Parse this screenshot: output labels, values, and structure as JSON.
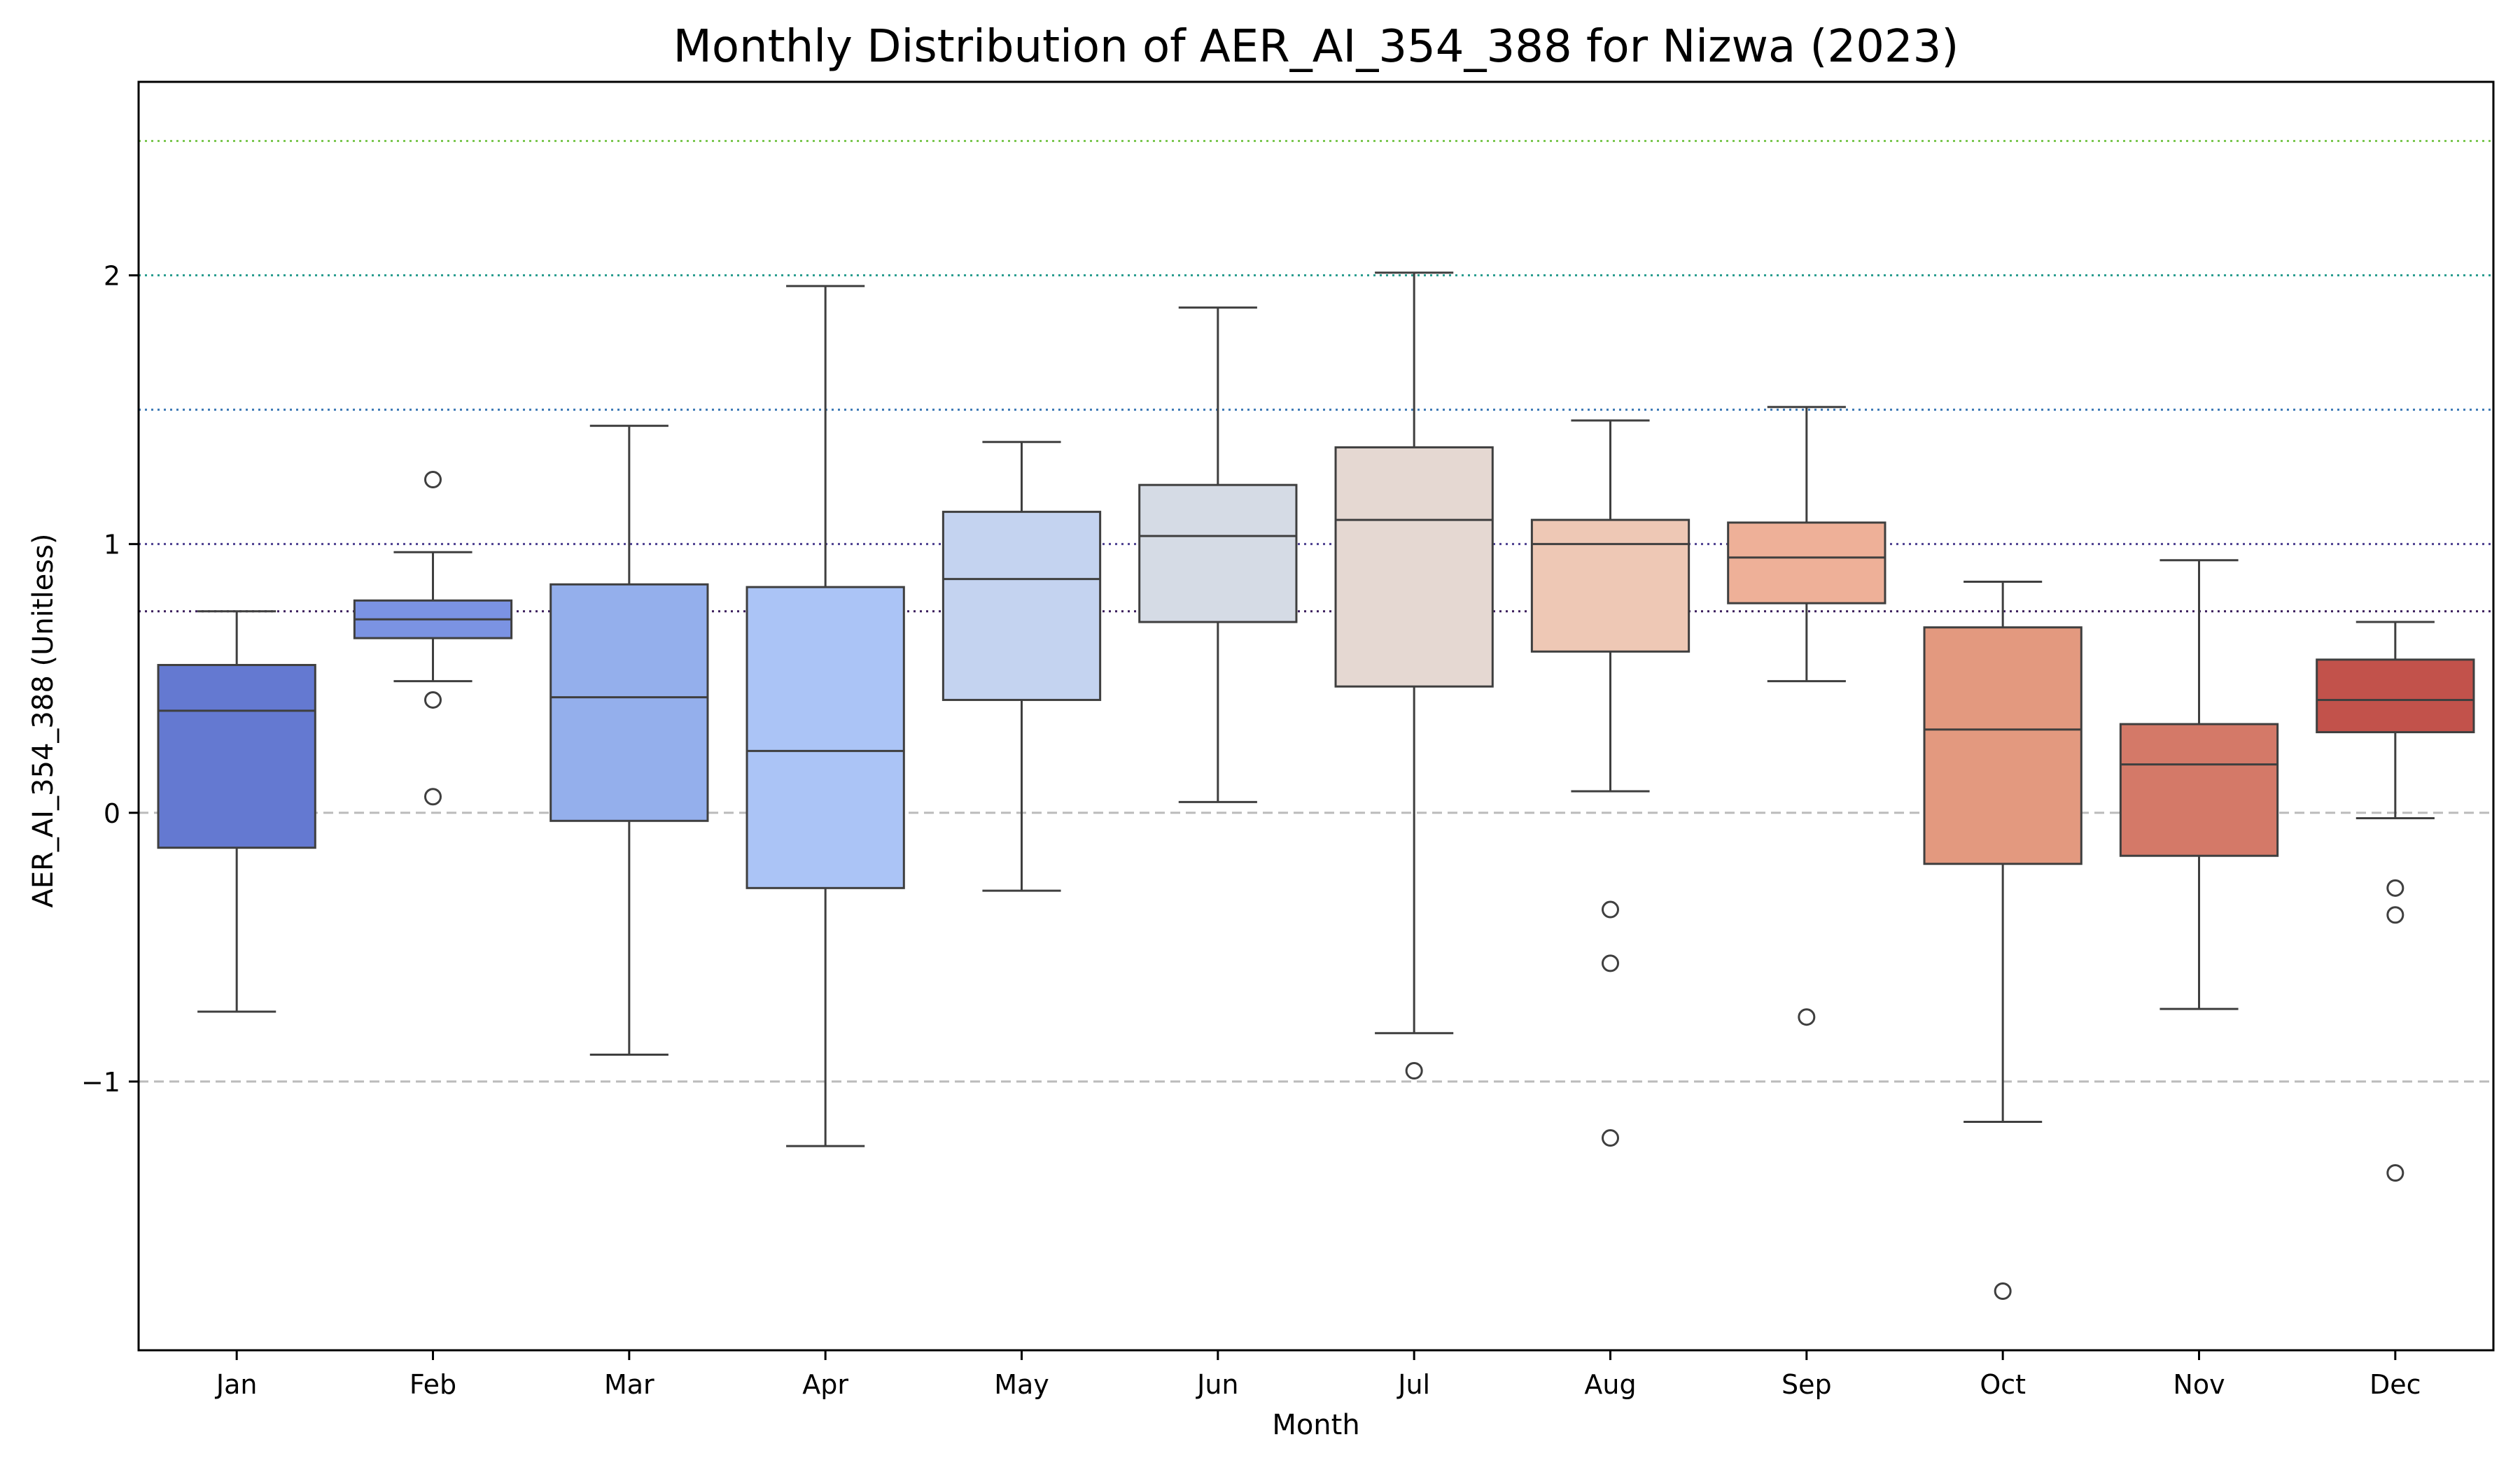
{
  "chart_data": {
    "type": "box",
    "title": "Monthly Distribution of AER_AI_354_388 for Nizwa (2023)",
    "xlabel": "Month",
    "ylabel": "AER_AI_354_388 (Unitless)",
    "ylim": [
      -2.0,
      2.72
    ],
    "yticks": [
      -1,
      0,
      1,
      2
    ],
    "ytick_labels": [
      "−1",
      "0",
      "1",
      "2"
    ],
    "grid": "horizontal dashed at 0 and −1",
    "reference_lines": [
      {
        "y": 2.5,
        "color": "#7ac74f",
        "style": "dotted"
      },
      {
        "y": 2.0,
        "color": "#2a9d8f",
        "style": "dotted"
      },
      {
        "y": 1.5,
        "color": "#3a78b5",
        "style": "dotted"
      },
      {
        "y": 1.0,
        "color": "#4b3f8f",
        "style": "dotted"
      },
      {
        "y": 0.75,
        "color": "#3b1f5c",
        "style": "dotted"
      },
      {
        "y": 0.0,
        "color": "#bbbbbb",
        "style": "dashed"
      },
      {
        "y": -1.0,
        "color": "#bbbbbb",
        "style": "dashed"
      }
    ],
    "categories": [
      "Jan",
      "Feb",
      "Mar",
      "Apr",
      "May",
      "Jun",
      "Jul",
      "Aug",
      "Sep",
      "Oct",
      "Nov",
      "Dec"
    ],
    "boxes": [
      {
        "month": "Jan",
        "whisker_low": -0.74,
        "q1": -0.13,
        "median": 0.38,
        "q3": 0.55,
        "whisker_high": 0.75,
        "outliers": [],
        "color": "#6479d1"
      },
      {
        "month": "Feb",
        "whisker_low": 0.49,
        "q1": 0.65,
        "median": 0.72,
        "q3": 0.79,
        "whisker_high": 0.97,
        "outliers": [
          1.24,
          0.42,
          0.06
        ],
        "color": "#7b93e3"
      },
      {
        "month": "Mar",
        "whisker_low": -0.9,
        "q1": -0.03,
        "median": 0.43,
        "q3": 0.85,
        "whisker_high": 1.44,
        "outliers": [],
        "color": "#94afec"
      },
      {
        "month": "Apr",
        "whisker_low": -1.24,
        "q1": -0.28,
        "median": 0.23,
        "q3": 0.84,
        "whisker_high": 1.96,
        "outliers": [],
        "color": "#abc4f6"
      },
      {
        "month": "May",
        "whisker_low": -0.29,
        "q1": 0.42,
        "median": 0.87,
        "q3": 1.12,
        "whisker_high": 1.38,
        "outliers": [],
        "color": "#c4d3f0"
      },
      {
        "month": "Jun",
        "whisker_low": 0.04,
        "q1": 0.71,
        "median": 1.03,
        "q3": 1.22,
        "whisker_high": 1.88,
        "outliers": [],
        "color": "#d5dbe5"
      },
      {
        "month": "Jul",
        "whisker_low": -0.82,
        "q1": 0.47,
        "median": 1.09,
        "q3": 1.36,
        "whisker_high": 2.01,
        "outliers": [
          -0.96
        ],
        "color": "#e5d8d2"
      },
      {
        "month": "Aug",
        "whisker_low": 0.08,
        "q1": 0.6,
        "median": 1.0,
        "q3": 1.09,
        "whisker_high": 1.46,
        "outliers": [
          -0.36,
          -0.56,
          -1.21
        ],
        "color": "#eec8b5"
      },
      {
        "month": "Sep",
        "whisker_low": 0.49,
        "q1": 0.78,
        "median": 0.95,
        "q3": 1.08,
        "whisker_high": 1.51,
        "outliers": [
          -0.76
        ],
        "color": "#eeb098"
      },
      {
        "month": "Oct",
        "whisker_low": -1.15,
        "q1": -0.19,
        "median": 0.31,
        "q3": 0.69,
        "whisker_high": 0.86,
        "outliers": [
          -1.78
        ],
        "color": "#e3997f"
      },
      {
        "month": "Nov",
        "whisker_low": -0.73,
        "q1": -0.16,
        "median": 0.18,
        "q3": 0.33,
        "whisker_high": 0.94,
        "outliers": [],
        "color": "#d47968"
      },
      {
        "month": "Dec",
        "whisker_low": -0.02,
        "q1": 0.3,
        "median": 0.42,
        "q3": 0.57,
        "whisker_high": 0.71,
        "outliers": [
          -0.28,
          -0.38,
          -1.34
        ],
        "color": "#c2524b"
      }
    ]
  }
}
